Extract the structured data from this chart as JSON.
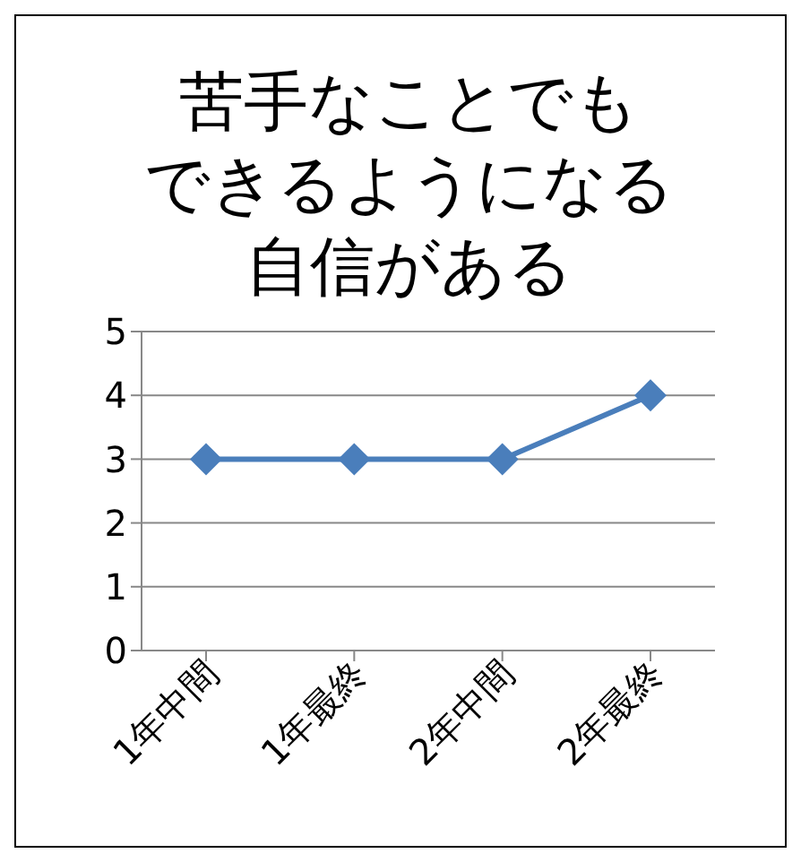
{
  "chart_data": {
    "type": "line",
    "title": "苦手なことでもできるようになる自信がある",
    "categories": [
      "1年中間",
      "1年最終",
      "2年中間",
      "2年最終"
    ],
    "series": [
      {
        "color": "#4a7ebb",
        "values": [
          3,
          3,
          3,
          4
        ]
      }
    ],
    "ylim": [
      0,
      5
    ],
    "yticks": [
      0,
      1,
      2,
      3,
      4,
      5
    ],
    "grid": "y",
    "marker": "diamond"
  }
}
